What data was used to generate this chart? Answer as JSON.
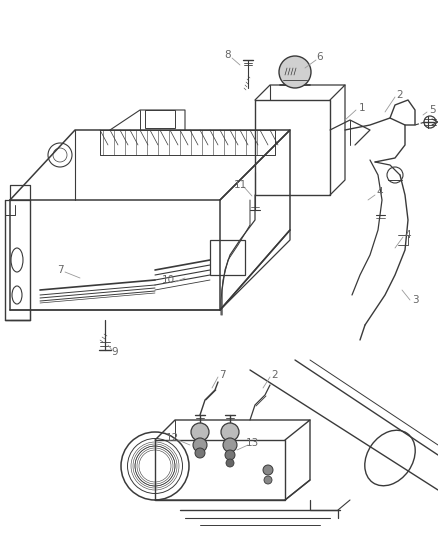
{
  "bg_color": "#ffffff",
  "line_color": "#3a3a3a",
  "label_color": "#666666",
  "lw": 0.9,
  "fig_w": 4.38,
  "fig_h": 5.33,
  "dpi": 100
}
